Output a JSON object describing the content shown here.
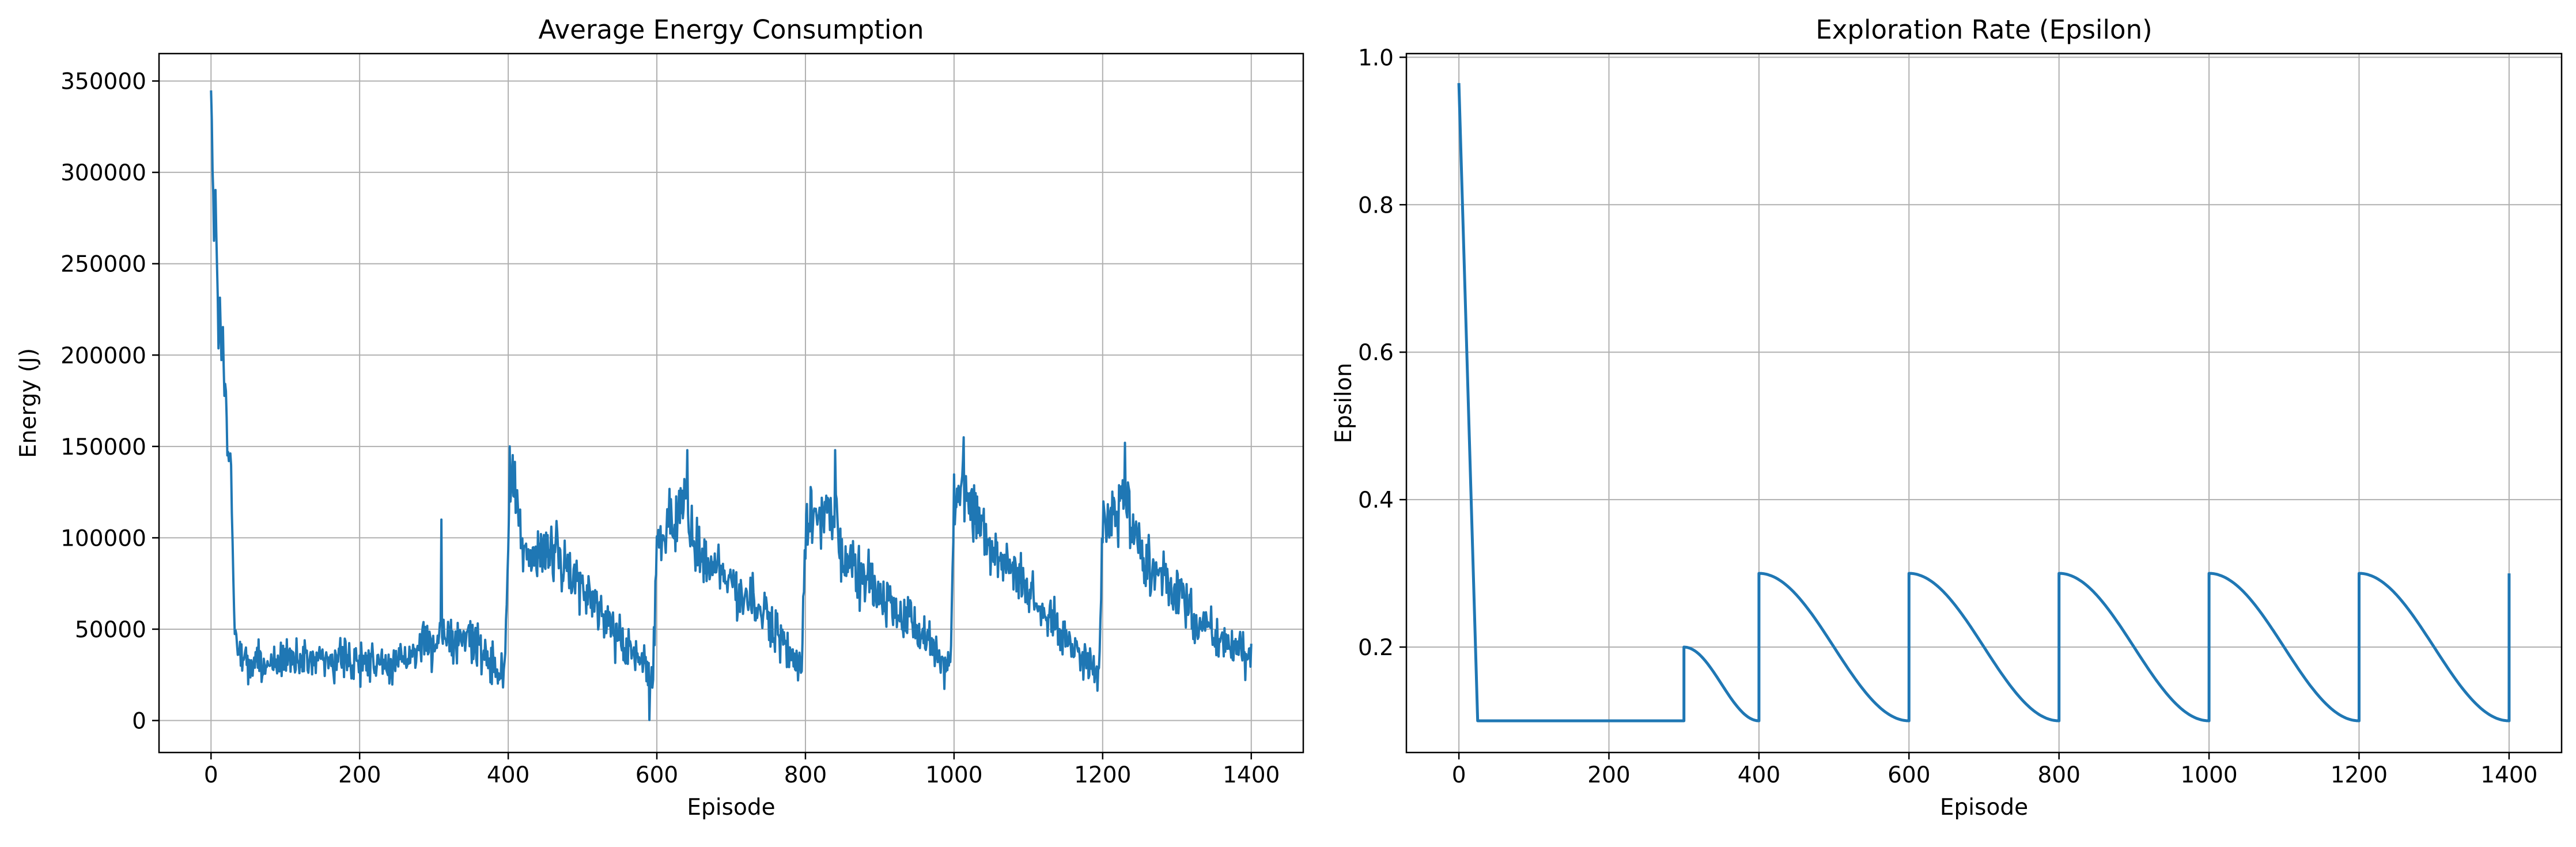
{
  "colors": {
    "line": "#1f77b4",
    "grid": "#b0b0b0",
    "axes": "#000000",
    "background": "#ffffff"
  },
  "chart_data": [
    {
      "type": "line",
      "title": "Average Energy Consumption",
      "xlabel": "Episode",
      "ylabel": "Energy (J)",
      "xlim": [
        -70,
        1470
      ],
      "ylim": [
        -17500,
        365000
      ],
      "xticks": [
        0,
        200,
        400,
        600,
        800,
        1000,
        1200,
        1400
      ],
      "yticks": [
        0,
        50000,
        100000,
        150000,
        200000,
        250000,
        300000,
        350000
      ],
      "grid": true,
      "generated_note_free": true,
      "series": [
        {
          "noise_seed": 7,
          "key_points": [
            [
              0,
              348000
            ],
            [
              2,
              300000
            ],
            [
              4,
              268000
            ],
            [
              6,
              292000
            ],
            [
              8,
              255000
            ],
            [
              10,
              198000
            ],
            [
              12,
              232000
            ],
            [
              14,
              196000
            ],
            [
              16,
              212000
            ],
            [
              18,
              178000
            ],
            [
              20,
              182000
            ],
            [
              22,
              150000
            ],
            [
              24,
              138000
            ],
            [
              26,
              150000
            ],
            [
              28,
              118000
            ],
            [
              30,
              78000
            ],
            [
              32,
              52000
            ],
            [
              35,
              40000
            ],
            [
              50,
              30000
            ],
            [
              100,
              33000
            ],
            [
              150,
              35000
            ],
            [
              200,
              32000
            ],
            [
              250,
              33000
            ],
            [
              300,
              42000
            ],
            [
              310,
              48000
            ],
            [
              350,
              45000
            ],
            [
              395,
              25000
            ],
            [
              400,
              95000
            ],
            [
              402,
              148000
            ],
            [
              420,
              88000
            ],
            [
              450,
              95000
            ],
            [
              500,
              75000
            ],
            [
              550,
              45000
            ],
            [
              595,
              25000
            ],
            [
              600,
              100000
            ],
            [
              640,
              118000
            ],
            [
              650,
              95000
            ],
            [
              700,
              75000
            ],
            [
              750,
              55000
            ],
            [
              795,
              30000
            ],
            [
              800,
              110000
            ],
            [
              840,
              112000
            ],
            [
              850,
              90000
            ],
            [
              900,
              70000
            ],
            [
              950,
              50000
            ],
            [
              995,
              28000
            ],
            [
              1000,
              112000
            ],
            [
              1010,
              125000
            ],
            [
              1050,
              95000
            ],
            [
              1100,
              70000
            ],
            [
              1150,
              45000
            ],
            [
              1195,
              25000
            ],
            [
              1200,
              105000
            ],
            [
              1230,
              120000
            ],
            [
              1250,
              90000
            ],
            [
              1300,
              70000
            ],
            [
              1350,
              45000
            ],
            [
              1400,
              33000
            ]
          ],
          "noise_amplitude_mid": 17000
        }
      ]
    },
    {
      "type": "line",
      "title": "Exploration Rate (Epsilon)",
      "xlabel": "Episode",
      "ylabel": "Epsilon",
      "xlim": [
        -70,
        1470
      ],
      "ylim": [
        0.057,
        1.005
      ],
      "xticks": [
        0,
        200,
        400,
        600,
        800,
        1000,
        1200,
        1400
      ],
      "yticks": [
        0.2,
        0.4,
        0.6,
        0.8,
        1.0
      ],
      "grid": true,
      "series": [
        {
          "x": [
            0,
            25,
            300,
            300,
            400,
            400,
            600,
            600,
            800,
            800,
            1000,
            1000,
            1200,
            1200,
            1400,
            1400
          ],
          "y": [
            0.965,
            0.1,
            0.1,
            0.2,
            0.1,
            0.3,
            0.1,
            0.3,
            0.1,
            0.3,
            0.1,
            0.3,
            0.1,
            0.3,
            0.1,
            0.3
          ]
        }
      ]
    }
  ]
}
